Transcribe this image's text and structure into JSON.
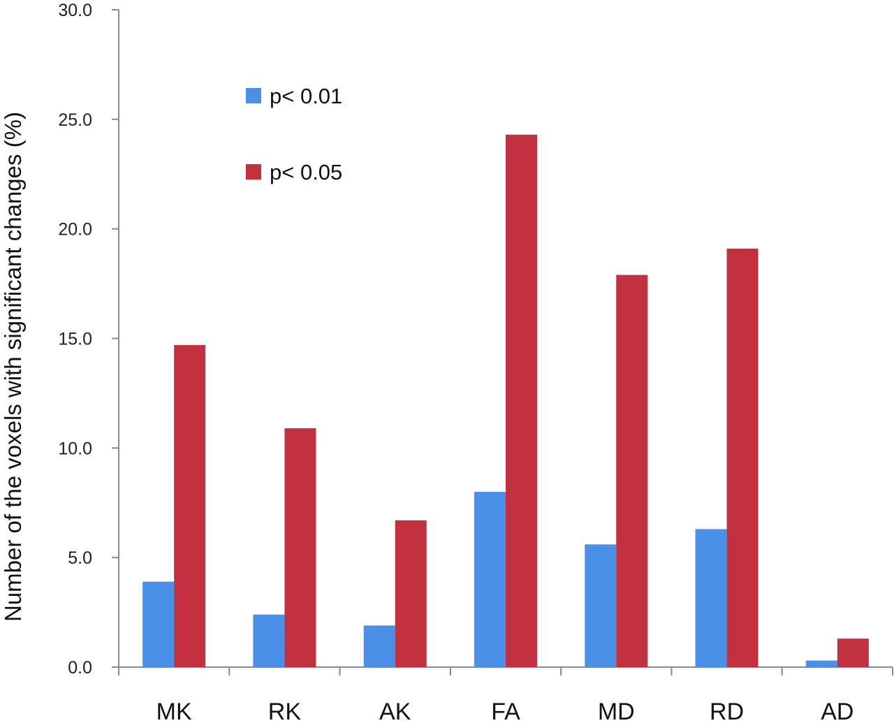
{
  "chart_data": {
    "type": "bar",
    "title": "",
    "xlabel": "",
    "ylabel": "Number of the voxels with significant changes (%)",
    "ylim": [
      0,
      30
    ],
    "yticks": [
      "0.0",
      "5.0",
      "10.0",
      "15.0",
      "20.0",
      "25.0",
      "30.0"
    ],
    "grid": false,
    "legend_position": "top-left",
    "categories": [
      "MK",
      "RK",
      "AK",
      "FA",
      "MD",
      "RD",
      "AD"
    ],
    "series": [
      {
        "name": "p< 0.01",
        "color": "#4a90e8",
        "values": [
          3.9,
          2.4,
          1.9,
          8.0,
          5.6,
          6.3,
          0.3
        ]
      },
      {
        "name": "p< 0.05",
        "color": "#c1313f",
        "values": [
          14.7,
          10.9,
          6.7,
          24.3,
          17.9,
          19.1,
          1.3
        ]
      }
    ]
  }
}
